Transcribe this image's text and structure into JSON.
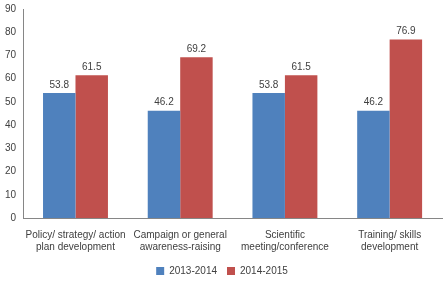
{
  "chart_data": {
    "type": "bar",
    "categories": [
      "Policy/ strategy/ action plan development",
      "Campaign or general awareness-raising",
      "Scientific meeting/conference",
      "Training/ skills development"
    ],
    "series": [
      {
        "name": "2013-2014",
        "color": "#4f81bd",
        "values": [
          53.8,
          46.2,
          53.8,
          46.2
        ]
      },
      {
        "name": "2014-2015",
        "color": "#c0504d",
        "values": [
          61.5,
          69.2,
          61.5,
          76.9
        ]
      }
    ],
    "ylim": [
      0,
      90
    ],
    "yticks": [
      0,
      10,
      20,
      30,
      40,
      50,
      60,
      70,
      80,
      90
    ],
    "grid": false,
    "legend": "bottom",
    "data_labels": true
  }
}
